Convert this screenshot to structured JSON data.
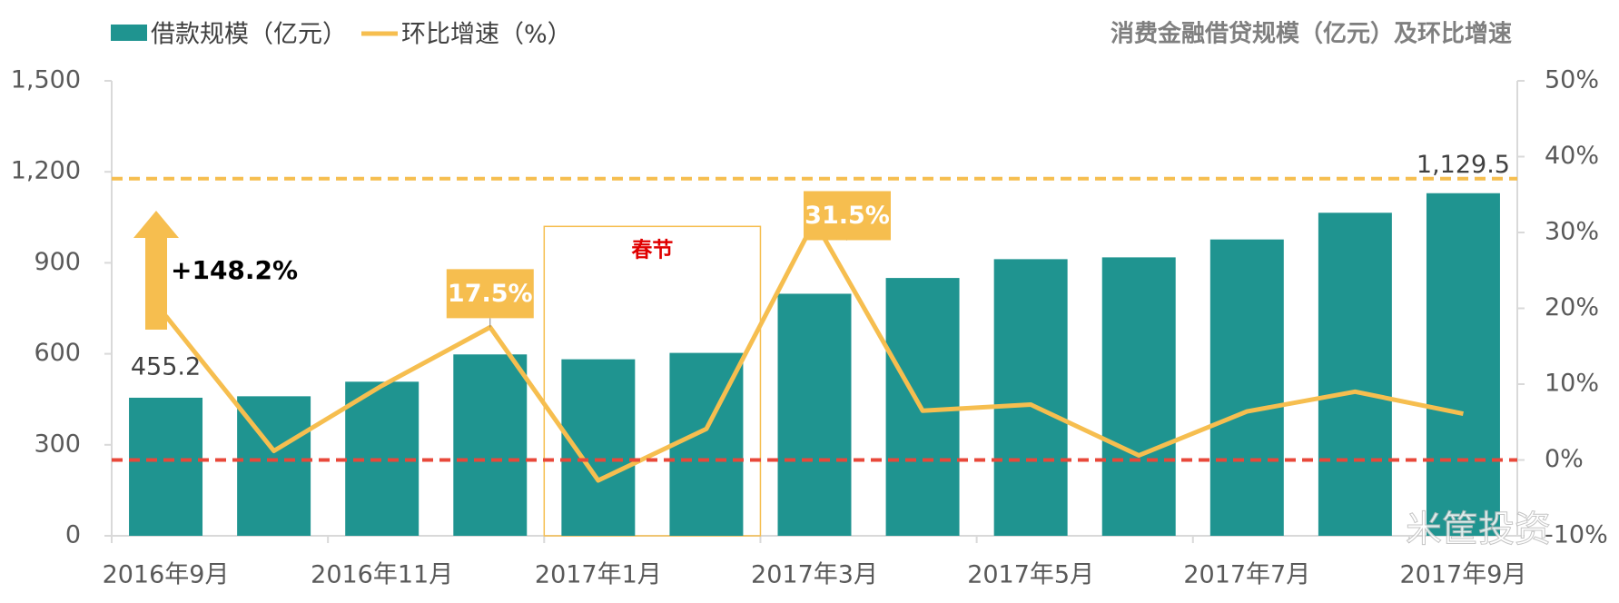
{
  "chart_data": {
    "type": "bar",
    "title": "消费金融借贷规模（亿元）及环比增速",
    "categories": [
      "2016年9月",
      null,
      "2016年11月",
      null,
      "2017年1月",
      null,
      "2017年3月",
      null,
      "2017年5月",
      null,
      "2017年7月",
      null,
      "2017年9月"
    ],
    "series": [
      {
        "name": "借款规模（亿元）",
        "type": "bar",
        "color": "#1f9490",
        "values": [
          455.2,
          460,
          508,
          598,
          582,
          603,
          798,
          850,
          912,
          918,
          977,
          1065,
          1129.5
        ],
        "value_labels": [
          "455.2",
          null,
          null,
          null,
          null,
          null,
          null,
          null,
          null,
          null,
          null,
          null,
          "1,129.5"
        ]
      },
      {
        "name": "环比增速（%）",
        "type": "line",
        "axis": "y2",
        "color": "#f6be4f",
        "values": [
          19,
          1.2,
          9.8,
          17.5,
          -2.7,
          4.1,
          31.5,
          6.5,
          7.3,
          0.6,
          6.4,
          9.0,
          6.1
        ],
        "value_labels": [
          null,
          null,
          null,
          "17.5%",
          null,
          null,
          "31.5%",
          null,
          null,
          null,
          null,
          null,
          null
        ]
      }
    ],
    "ylim": [
      0,
      1500
    ],
    "yticks": [
      0,
      300,
      600,
      900,
      {
        "value": 1200,
        "label": "1,200"
      },
      {
        "value": 1500,
        "label": "1,500"
      }
    ],
    "y2lim": [
      -10,
      50
    ],
    "y2ticks": [
      {
        "value": -10,
        "label": "-10%"
      },
      {
        "value": 0,
        "label": "0%"
      },
      {
        "value": 10,
        "label": "10%"
      },
      {
        "value": 20,
        "label": "20%"
      },
      {
        "value": 30,
        "label": "30%"
      },
      {
        "value": 40,
        "label": "40%"
      },
      {
        "value": 50,
        "label": "50%"
      }
    ],
    "annotations": [
      "+148.2%",
      "春节"
    ],
    "watermark": "米筐投资"
  }
}
